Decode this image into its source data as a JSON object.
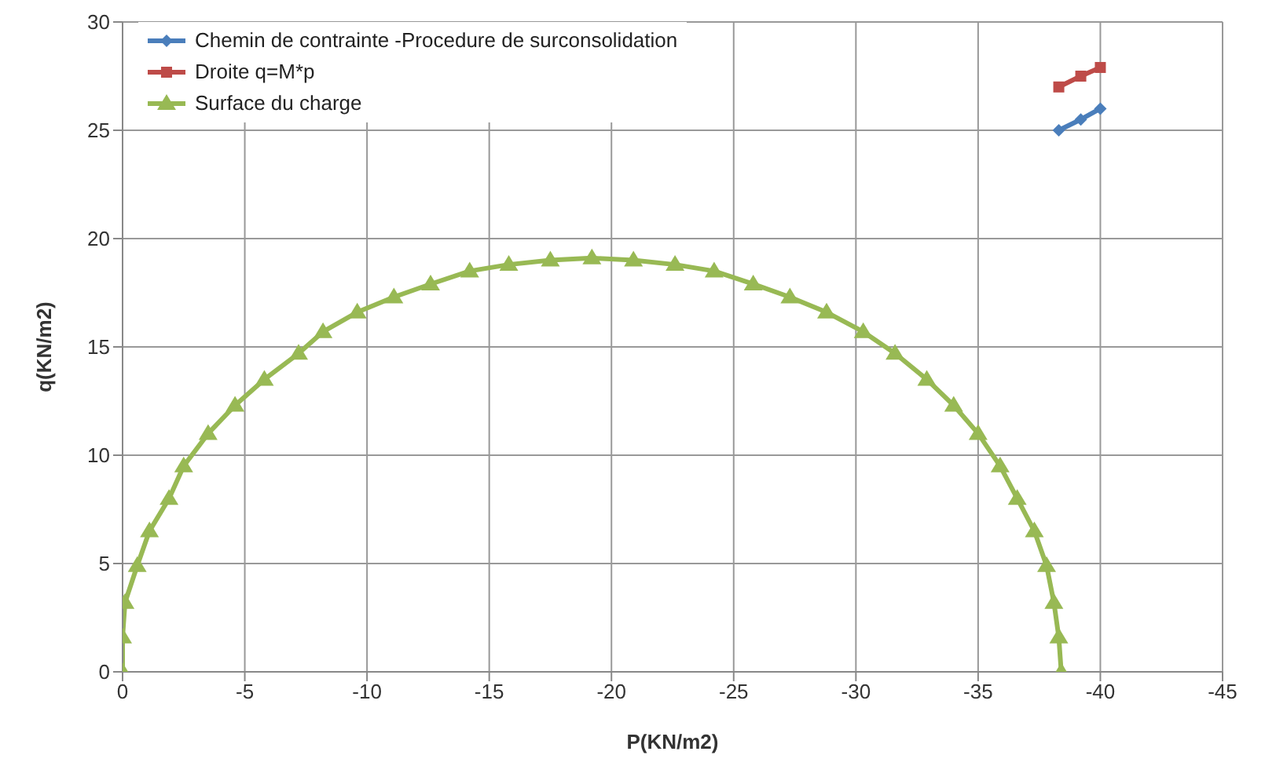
{
  "chart_data": {
    "type": "line",
    "xlabel": "P(KN/m2)",
    "ylabel": "q(KN/m2)",
    "xlim": [
      0,
      -45
    ],
    "xticks": [
      0,
      -5,
      -10,
      -15,
      -20,
      -25,
      -30,
      -35,
      -40,
      -45
    ],
    "ylim": [
      0,
      30
    ],
    "yticks": [
      0,
      5,
      10,
      15,
      20,
      25,
      30
    ],
    "grid": true,
    "legend": "top left",
    "series": [
      {
        "name": "Chemin de contrainte -Procedure de surconsolidation",
        "color": "#4a7ebb",
        "marker": "diamond",
        "x": [
          -38.3,
          -39.2,
          -40.0
        ],
        "values": [
          25.0,
          25.5,
          26.0
        ]
      },
      {
        "name": "Droite q=M*p",
        "color": "#be4b48",
        "marker": "square",
        "x": [
          -38.3,
          -39.2,
          -40.0
        ],
        "values": [
          27.0,
          27.5,
          27.9
        ]
      },
      {
        "name": "Surface du charge",
        "color": "#98b954",
        "marker": "triangle",
        "x": [
          0,
          0,
          -0.1,
          -0.6,
          -1.1,
          -1.9,
          -2.5,
          -3.5,
          -4.6,
          -5.8,
          -7.2,
          -8.2,
          -9.6,
          -11.1,
          -12.6,
          -14.2,
          -15.8,
          -17.5,
          -19.2,
          -20.9,
          -22.6,
          -24.2,
          -25.8,
          -27.3,
          -28.8,
          -30.3,
          -31.6,
          -32.9,
          -34.0,
          -35.0,
          -35.9,
          -36.6,
          -37.3,
          -37.8,
          -38.1,
          -38.3,
          -38.4
        ],
        "values": [
          0,
          1.6,
          3.2,
          4.9,
          6.5,
          8.0,
          9.5,
          11.0,
          12.3,
          13.5,
          14.7,
          15.7,
          16.6,
          17.3,
          17.9,
          18.5,
          18.8,
          19.0,
          19.1,
          19.0,
          18.8,
          18.5,
          17.9,
          17.3,
          16.6,
          15.7,
          14.7,
          13.5,
          12.3,
          11.0,
          9.5,
          8.0,
          6.5,
          4.9,
          3.2,
          1.6,
          0
        ]
      }
    ]
  }
}
